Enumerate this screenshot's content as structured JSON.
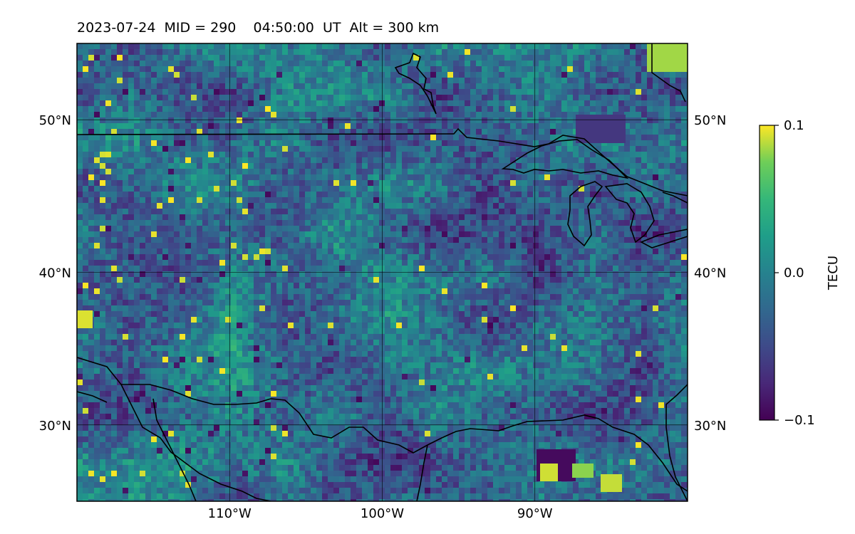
{
  "title": "2023-07-24  MID = 290    04:50:00  UT  Alt = 300 km",
  "map": {
    "lon_range": [
      -120,
      -80
    ],
    "lat_range": [
      25,
      55
    ],
    "gridlines": true,
    "x_ticks": [
      {
        "lon": -110,
        "label": "110°W"
      },
      {
        "lon": -100,
        "label": "100°W"
      },
      {
        "lon": -90,
        "label": "90°W"
      }
    ],
    "y_ticks": [
      {
        "lat": 50,
        "label": "50°N"
      },
      {
        "lat": 40,
        "label": "40°N"
      },
      {
        "lat": 30,
        "label": "30°N"
      }
    ]
  },
  "colorbar": {
    "label": "TECU",
    "colormap": "viridis",
    "min": -0.1,
    "max": 0.1,
    "ticks": [
      {
        "value": 0.1,
        "label": "0.1"
      },
      {
        "value": 0.0,
        "label": "0.0"
      },
      {
        "value": -0.1,
        "label": "−0.1"
      }
    ]
  },
  "colors": {
    "coastline": "#000000",
    "gridline": "#000000",
    "low": "#440154",
    "mid": "#21918c",
    "high": "#fde725"
  }
}
